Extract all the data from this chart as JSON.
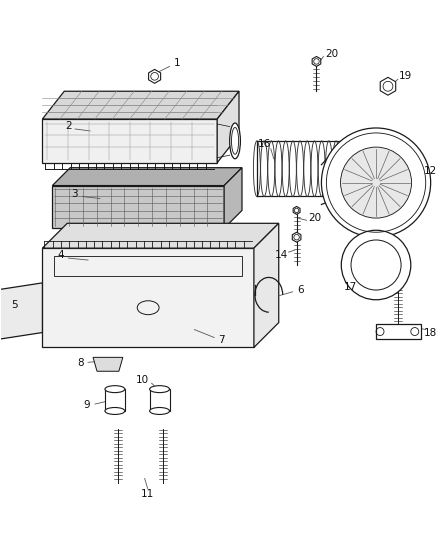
{
  "bg_color": "#ffffff",
  "line_color": "#1a1a1a",
  "label_color": "#222222",
  "lw": 0.9,
  "figsize": [
    4.38,
    5.33
  ],
  "dpi": 100
}
